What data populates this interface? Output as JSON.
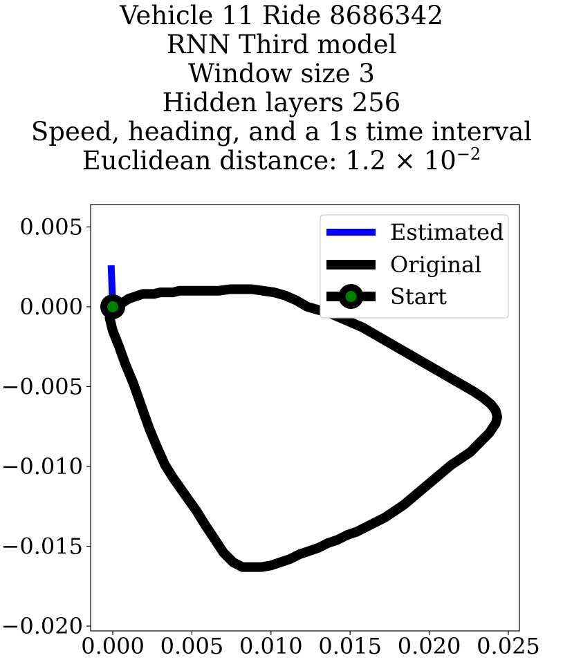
{
  "chart_data": {
    "type": "line",
    "title_lines": [
      "Vehicle 11 Ride 8686342",
      "RNN Third model",
      "Window size 3",
      "Hidden layers 256",
      "Speed, heading, and a 1s time interval"
    ],
    "distance_label": "Euclidean distance: 1.2 × 10",
    "distance_exponent": "−2",
    "xlim": [
      -0.0014,
      0.0257
    ],
    "ylim": [
      -0.0203,
      0.0064
    ],
    "xticks": [
      {
        "v": 0.0,
        "label": "0.000"
      },
      {
        "v": 0.005,
        "label": "0.005"
      },
      {
        "v": 0.01,
        "label": "0.010"
      },
      {
        "v": 0.015,
        "label": "0.015"
      },
      {
        "v": 0.02,
        "label": "0.020"
      },
      {
        "v": 0.025,
        "label": "0.025"
      }
    ],
    "yticks": [
      {
        "v": 0.005,
        "label": "0.005"
      },
      {
        "v": 0.0,
        "label": "0.000"
      },
      {
        "v": -0.005,
        "label": "−0.005"
      },
      {
        "v": -0.01,
        "label": "−0.010"
      },
      {
        "v": -0.015,
        "label": "−0.015"
      },
      {
        "v": -0.02,
        "label": "−0.020"
      }
    ],
    "grid": false,
    "legend_position": "top-right",
    "series": [
      {
        "name": "Estimated",
        "color": "#0000ff",
        "x": [
          0.0,
          -0.0001
        ],
        "y": [
          0.0,
          0.0026
        ]
      },
      {
        "name": "Original",
        "color": "#000000",
        "x": [
          0.0,
          -0.0002,
          0.0,
          0.0004,
          0.0008,
          0.0013,
          0.0018,
          0.0023,
          0.0028,
          0.0033,
          0.0038,
          0.0043,
          0.0048,
          0.0053,
          0.0058,
          0.0064,
          0.007,
          0.0076,
          0.0082,
          0.0088,
          0.0094,
          0.01,
          0.0106,
          0.0112,
          0.0118,
          0.0124,
          0.013,
          0.0136,
          0.0142,
          0.0148,
          0.0154,
          0.016,
          0.0166,
          0.0172,
          0.0178,
          0.0184,
          0.019,
          0.0196,
          0.0202,
          0.0208,
          0.0214,
          0.022,
          0.0226,
          0.0232,
          0.0238,
          0.0242,
          0.0243,
          0.0242,
          0.0239,
          0.0234,
          0.0228,
          0.0221,
          0.0214,
          0.0207,
          0.02,
          0.0193,
          0.0186,
          0.0179,
          0.0172,
          0.0165,
          0.0158,
          0.0151,
          0.0144,
          0.0137,
          0.013,
          0.0123,
          0.0116,
          0.0109,
          0.0102,
          0.0095,
          0.0088,
          0.0081,
          0.0074,
          0.0067,
          0.006,
          0.0053,
          0.0047,
          0.0042,
          0.0038,
          0.0034,
          0.003,
          0.0026,
          0.0022,
          0.0019,
          0.0016,
          0.0013,
          0.001,
          0.0007,
          0.0004,
          0.0002,
          0.0,
          0.0
        ],
        "y": [
          0.0,
          -0.0007,
          -0.0015,
          -0.0025,
          -0.0036,
          -0.0048,
          -0.0062,
          -0.0076,
          -0.0088,
          -0.0099,
          -0.0107,
          -0.0114,
          -0.0121,
          -0.0128,
          -0.0136,
          -0.0145,
          -0.0154,
          -0.016,
          -0.0163,
          -0.0163,
          -0.0163,
          -0.0162,
          -0.016,
          -0.0158,
          -0.0155,
          -0.0153,
          -0.0151,
          -0.0148,
          -0.0146,
          -0.0143,
          -0.0141,
          -0.0138,
          -0.0135,
          -0.0132,
          -0.0128,
          -0.0124,
          -0.0119,
          -0.0114,
          -0.0109,
          -0.0104,
          -0.0099,
          -0.0095,
          -0.0091,
          -0.0085,
          -0.0079,
          -0.0073,
          -0.0069,
          -0.0065,
          -0.0061,
          -0.0057,
          -0.0053,
          -0.0049,
          -0.0045,
          -0.0041,
          -0.0037,
          -0.0033,
          -0.0029,
          -0.0025,
          -0.0021,
          -0.0017,
          -0.0013,
          -0.001,
          -0.0007,
          -0.0004,
          -0.0002,
          0.0,
          0.0004,
          0.0007,
          0.0009,
          0.001,
          0.0011,
          0.0011,
          0.0011,
          0.001,
          0.001,
          0.001,
          0.001,
          0.001,
          0.0009,
          0.0009,
          0.0009,
          0.0008,
          0.0008,
          0.0008,
          0.0007,
          0.0006,
          0.0005,
          0.0003,
          0.0002,
          0.0001,
          0.0,
          0.0
        ]
      }
    ],
    "start": {
      "name": "Start",
      "x": 0.0,
      "y": 0.0,
      "line_color": "#000000",
      "marker_fill": "#008000"
    }
  }
}
